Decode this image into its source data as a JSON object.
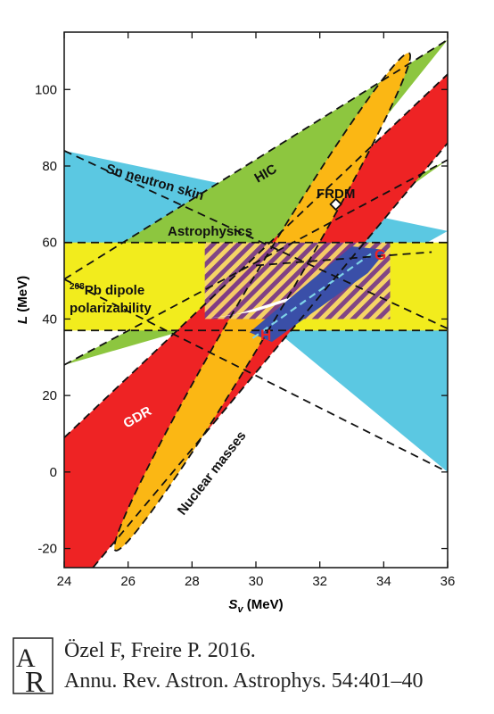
{
  "chart_data": {
    "type": "area",
    "xlabel": "S",
    "xlabel_sub": "v",
    "xlabel_unit": " (MeV)",
    "ylabel": "L (MeV)",
    "xlim": [
      24,
      36
    ],
    "ylim": [
      -25,
      115
    ],
    "x_ticks": [
      "24",
      "26",
      "28",
      "30",
      "32",
      "34",
      "36"
    ],
    "y_ticks": [
      "-20",
      "0",
      "20",
      "40",
      "60",
      "80",
      "100"
    ],
    "x_tick_values": [
      24,
      26,
      28,
      30,
      32,
      34,
      36
    ],
    "y_tick_values": [
      -20,
      0,
      20,
      40,
      60,
      80,
      100
    ],
    "colors": {
      "hic": "#8dc63f",
      "sn_neutron_skin": "#5bc8e2",
      "pb_dipole": "#f2ec1d",
      "gdr": "#ee2324",
      "nuclear_masses": "#fbb714",
      "hatch": "#7b3c8a",
      "astro_band": "#3a4fa8",
      "dash_blue": "#7fd3e8"
    },
    "regions": [
      {
        "id": "hic",
        "label": "HIC",
        "polygons": [
          [
            [
              24,
              50.4
            ],
            [
              29,
              40
            ],
            [
              36,
              113
            ]
          ],
          [
            [
              24,
              28
            ],
            [
              29,
              40
            ],
            [
              36,
              81.6
            ]
          ]
        ]
      },
      {
        "id": "sn_neutron_skin",
        "label": "Sn neutron skin",
        "polygons": [
          [
            [
              24,
              84
            ],
            [
              24,
              50.4
            ],
            [
              30.4,
              40
            ],
            [
              30.55,
              37.5
            ],
            [
              36,
              63
            ]
          ],
          [
            [
              30.55,
              37.5
            ],
            [
              36,
              0
            ],
            [
              36,
              37.5
            ]
          ]
        ]
      },
      {
        "id": "pb_dipole",
        "label": "Pb dipole polarizability",
        "label_sup": "208",
        "label_line2": "polarizability",
        "y_range": [
          37,
          60
        ]
      },
      {
        "id": "gdr",
        "label": "GDR",
        "polygons": [
          [
            [
              24,
              9
            ],
            [
              24,
              -25
            ],
            [
              24.9,
              -25
            ],
            [
              36,
              86
            ],
            [
              36,
              104
            ]
          ]
        ]
      },
      {
        "id": "nuclear_masses",
        "label": "Nuclear masses",
        "ellipse": {
          "center": [
            30.2,
            42.5
          ],
          "points": [
            [
              25.6,
              -20.5
            ],
            [
              34.8,
              109.5
            ]
          ],
          "half_width_mev": 0.62
        }
      },
      {
        "id": "frdm",
        "label": "FRDM",
        "point": [
          32.5,
          70
        ]
      },
      {
        "id": "astrophysics",
        "label": "Astrophysics",
        "rect": {
          "x": [
            28.4,
            34.2
          ],
          "y": [
            40,
            60
          ]
        }
      },
      {
        "id": "g",
        "label": "G",
        "polygon": [
          [
            29.8,
            36.5
          ],
          [
            30.5,
            34
          ],
          [
            33.5,
            52
          ],
          [
            34.1,
            58
          ],
          [
            33,
            59
          ]
        ]
      },
      {
        "id": "h",
        "label": "H"
      }
    ],
    "citation": {
      "line1": "Özel F, Freire P. 2016.",
      "line2": "Annu. Rev. Astron. Astrophys. 54:401–40"
    }
  }
}
